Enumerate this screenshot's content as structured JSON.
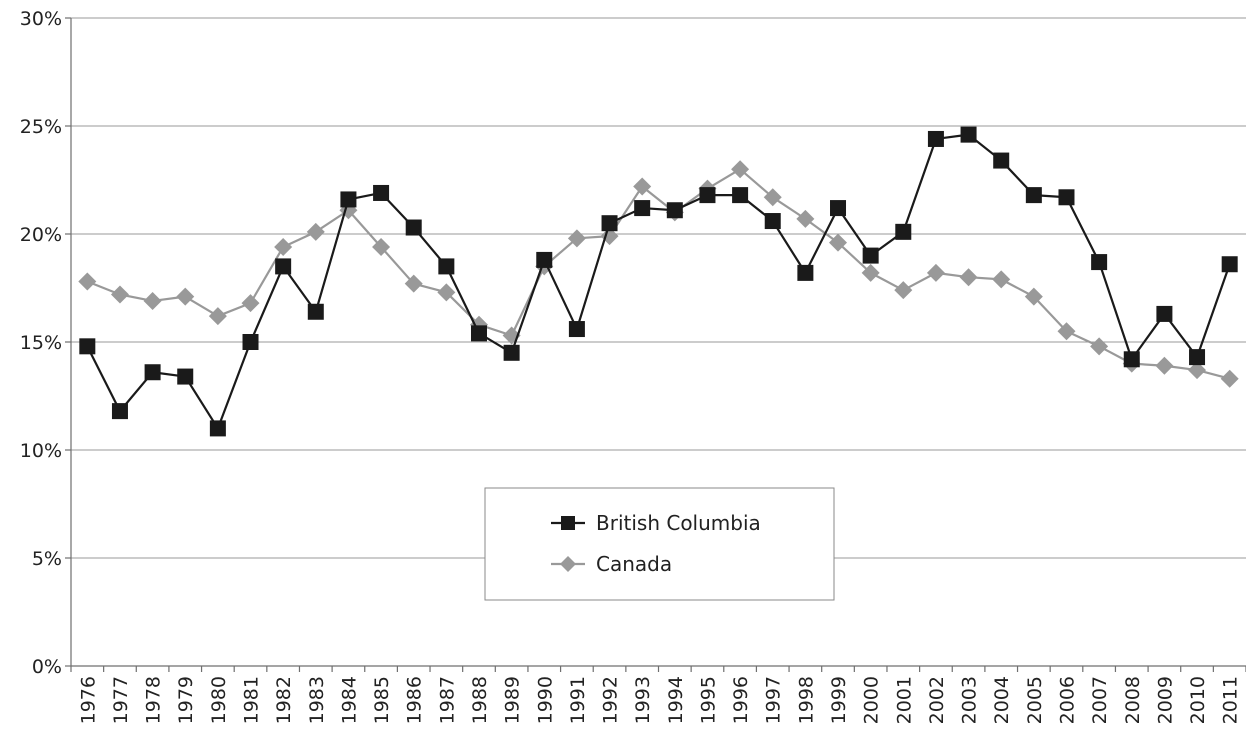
{
  "chart_data": {
    "type": "line",
    "title": "",
    "xlabel": "",
    "ylabel": "",
    "x": [
      "1976",
      "1977",
      "1978",
      "1979",
      "1980",
      "1981",
      "1982",
      "1983",
      "1984",
      "1985",
      "1986",
      "1987",
      "1988",
      "1989",
      "1990",
      "1991",
      "1992",
      "1993",
      "1994",
      "1995",
      "1996",
      "1997",
      "1998",
      "1999",
      "2000",
      "2001",
      "2002",
      "2003",
      "2004",
      "2005",
      "2006",
      "2007",
      "2008",
      "2009",
      "2010",
      "2011"
    ],
    "ylim": [
      0,
      30
    ],
    "y_ticks": [
      "0%",
      "5%",
      "10%",
      "15%",
      "20%",
      "25%",
      "30%"
    ],
    "grid": true,
    "legend_position": "center",
    "series": [
      {
        "name": "British Columbia",
        "color": "#1a1a1a",
        "marker": "square",
        "values": [
          14.8,
          11.8,
          13.6,
          13.4,
          11.0,
          15.0,
          18.5,
          16.4,
          21.6,
          21.9,
          20.3,
          18.5,
          15.4,
          14.5,
          18.8,
          15.6,
          20.5,
          21.2,
          21.1,
          21.8,
          21.8,
          20.6,
          18.2,
          21.2,
          19.0,
          20.1,
          24.4,
          24.6,
          23.4,
          21.8,
          21.7,
          18.7,
          14.2,
          16.3,
          14.3,
          18.6
        ]
      },
      {
        "name": "Canada",
        "color": "#999999",
        "marker": "diamond",
        "values": [
          17.8,
          17.2,
          16.9,
          17.1,
          16.2,
          16.8,
          19.4,
          20.1,
          21.1,
          19.4,
          17.7,
          17.3,
          15.8,
          15.3,
          18.5,
          19.8,
          19.9,
          22.2,
          21.0,
          22.1,
          23.0,
          21.7,
          20.7,
          19.6,
          18.2,
          17.4,
          18.2,
          18.0,
          17.9,
          17.1,
          15.5,
          14.8,
          14.0,
          13.9,
          13.7,
          13.3
        ]
      }
    ]
  }
}
